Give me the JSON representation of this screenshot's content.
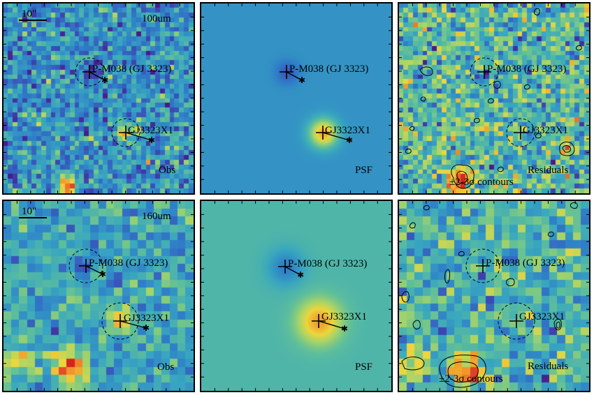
{
  "colors": {
    "colormap": [
      "#4a1a8c",
      "#3a4fb8",
      "#2f7ec8",
      "#38a6c0",
      "#5fbf9a",
      "#a6d468",
      "#ecd63e",
      "#f0a12c",
      "#e8532a",
      "#d42420"
    ],
    "residual_contour": "#000000"
  },
  "rows": [
    {
      "band": "100um",
      "scale_bar": "10\"",
      "panels": [
        {
          "kind": "obs",
          "label": "Obs",
          "source1": "P-M038 (GJ 3323)",
          "source2": "GJ3323X1"
        },
        {
          "kind": "psf",
          "label": "PSF",
          "source1": "P-M038 (GJ 3323)",
          "source2": "GJ3323X1"
        },
        {
          "kind": "res",
          "label": "Residuals",
          "label2": "±2-3σ contours",
          "source1": "P-M038 (GJ 3323)",
          "source2": "GJ3323X1"
        }
      ]
    },
    {
      "band": "160um",
      "scale_bar": "10\"",
      "panels": [
        {
          "kind": "obs",
          "label": "Obs",
          "source1": "P-M038 (GJ 3323)",
          "source2": "GJ3323X1"
        },
        {
          "kind": "psf",
          "label": "PSF",
          "source1": "P-M038 (GJ 3323)",
          "source2": "GJ3323X1"
        },
        {
          "kind": "res",
          "label": "Residuals",
          "label2": "±2-3σ contours",
          "source1": "P-M038 (GJ 3323)",
          "source2": "GJ3323X1"
        }
      ]
    }
  ]
}
